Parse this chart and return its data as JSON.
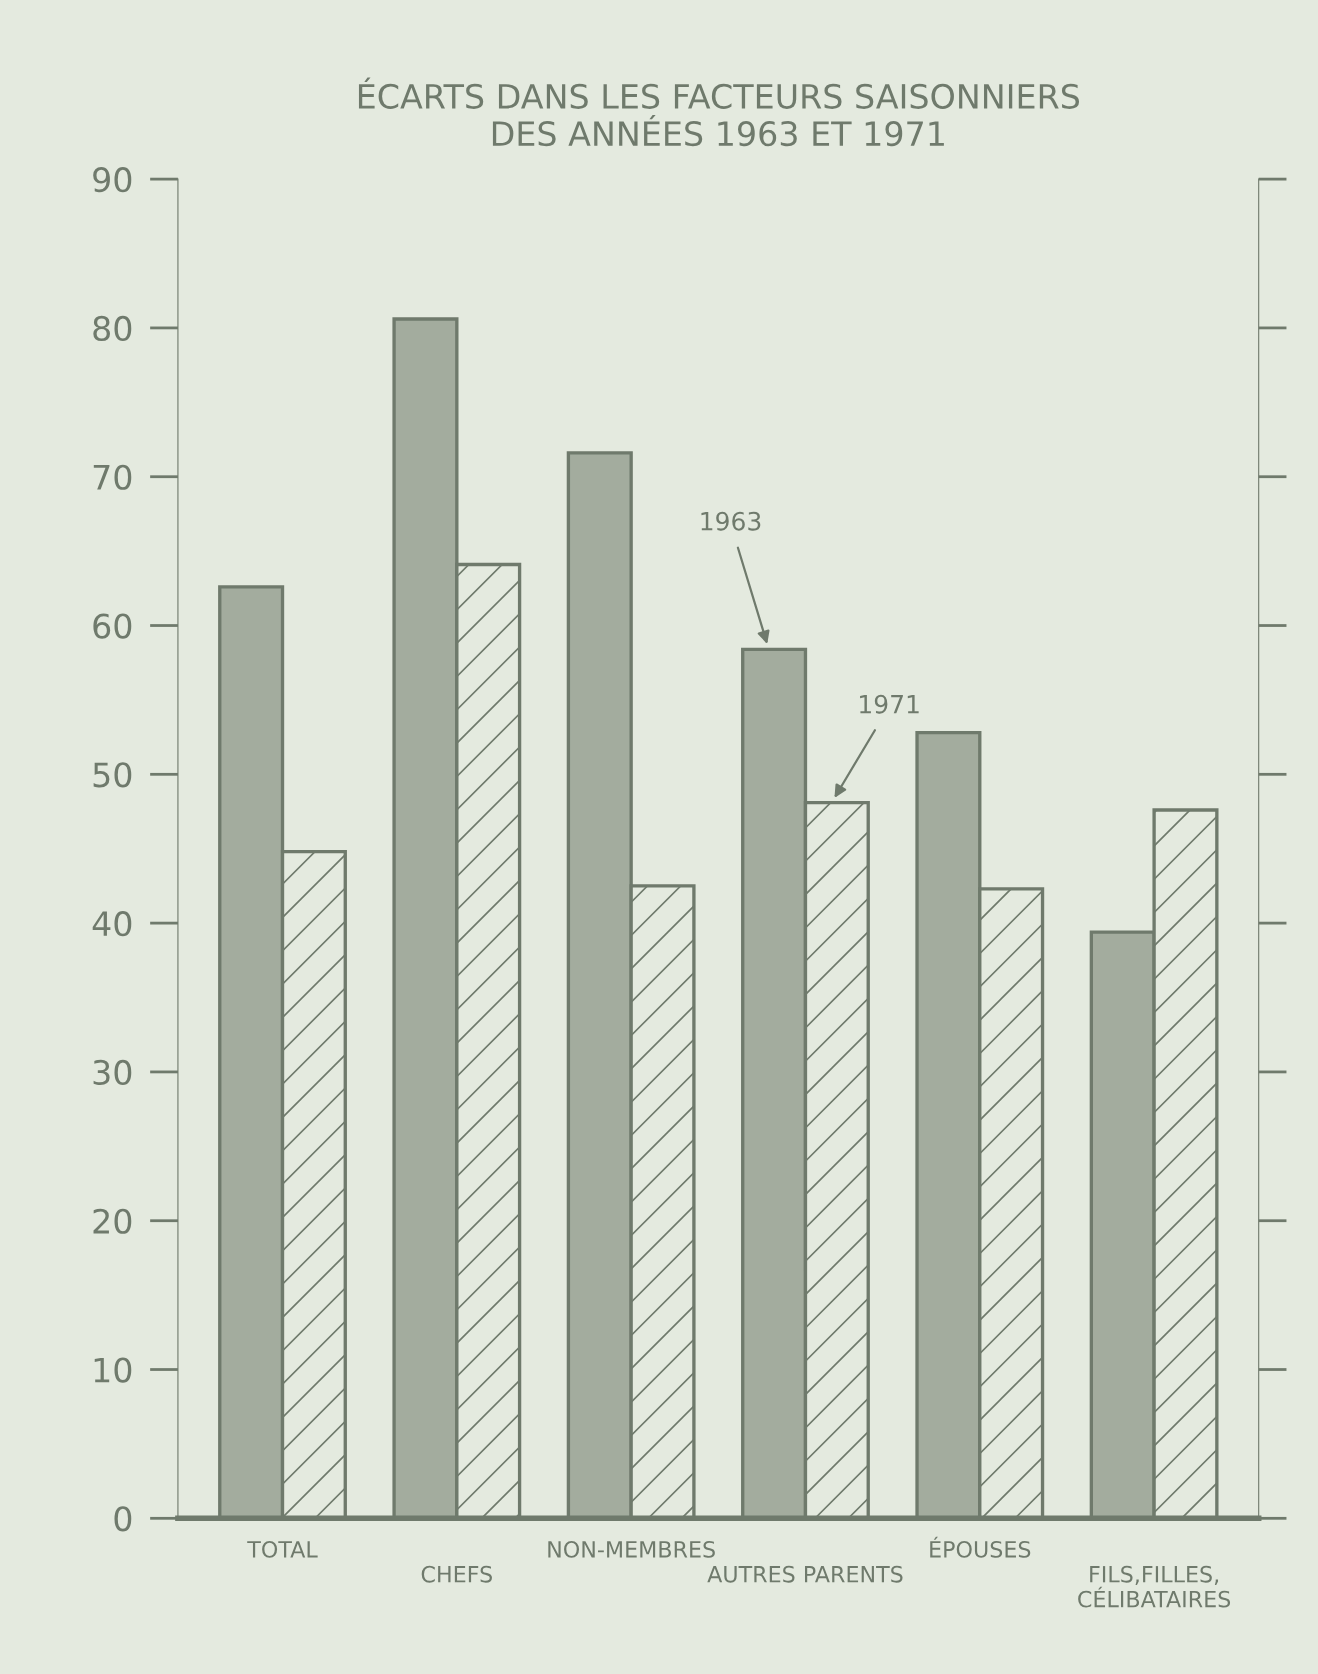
{
  "chart_data": {
    "type": "bar",
    "title": "ÉCARTS DANS LES FACTEURS SAISONNIERS\nDES ANNÉES 1963 ET 1971",
    "categories": [
      "TOTAL",
      "CHEFS",
      "NON-MEMBRES",
      "AUTRES PARENTS",
      "ÉPOUSES",
      "FILS,FILLES,\nCÉLIBATAIRES"
    ],
    "series": [
      {
        "name": "1963",
        "color": "#a3ac9e",
        "values": [
          62.6,
          80.6,
          71.6,
          58.4,
          52.8,
          39.4
        ]
      },
      {
        "name": "1971",
        "color": "#6f7a6c",
        "values": [
          44.8,
          64.1,
          42.5,
          48.1,
          42.3,
          47.6
        ]
      }
    ],
    "ylim": [
      0,
      90
    ],
    "yticks": [
      0,
      10,
      20,
      30,
      40,
      50,
      60,
      70,
      80,
      90
    ],
    "grid": false,
    "legend": false
  }
}
